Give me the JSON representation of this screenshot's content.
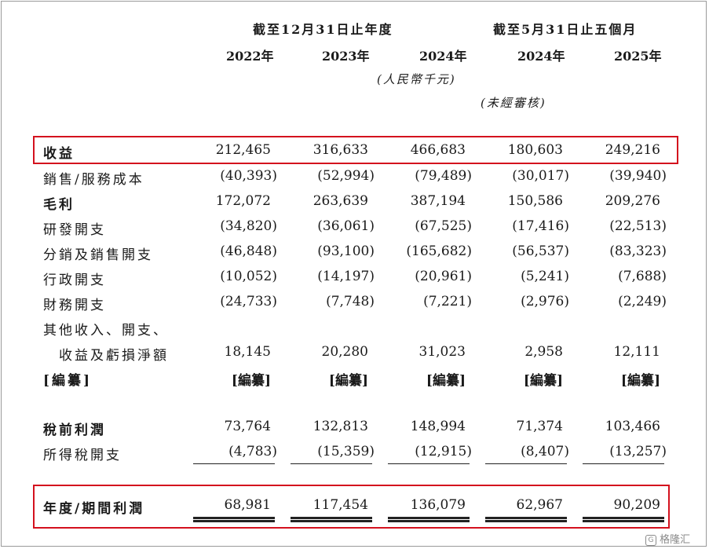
{
  "header": {
    "group_fy": "截至12月31日止年度",
    "group_5m": "截至5月31日止五個月",
    "years": [
      "2022年",
      "2023年",
      "2024年",
      "2024年",
      "2025年"
    ],
    "currency_note": "(人民幣千元)",
    "unaudited_note": "(未經審核)"
  },
  "rows": [
    {
      "label": "收益",
      "values": [
        "212,465",
        "316,633",
        "466,683",
        "180,603",
        "249,216"
      ]
    },
    {
      "label": "銷售/服務成本",
      "values": [
        "(40,393)",
        "(52,994)",
        "(79,489)",
        "(30,017)",
        "(39,940)"
      ]
    },
    {
      "label": "毛利",
      "values": [
        "172,072",
        "263,639",
        "387,194",
        "150,586",
        "209,276"
      ]
    },
    {
      "label": "研發開支",
      "values": [
        "(34,820)",
        "(36,061)",
        "(67,525)",
        "(17,416)",
        "(22,513)"
      ]
    },
    {
      "label": "分銷及銷售開支",
      "values": [
        "(46,848)",
        "(93,100)",
        "(165,682)",
        "(56,537)",
        "(83,323)"
      ]
    },
    {
      "label": "行政開支",
      "values": [
        "(10,052)",
        "(14,197)",
        "(20,961)",
        "(5,241)",
        "(7,688)"
      ]
    },
    {
      "label": "財務開支",
      "values": [
        "(24,733)",
        "(7,748)",
        "(7,221)",
        "(2,976)",
        "(2,249)"
      ]
    },
    {
      "label": "其他收入、開支、",
      "label2": "收益及虧損淨額",
      "values": [
        "18,145",
        "20,280",
        "31,023",
        "2,958",
        "12,111"
      ]
    },
    {
      "label": "[編纂]",
      "values": [
        "[編纂]",
        "[編纂]",
        "[編纂]",
        "[編纂]",
        "[編纂]"
      ]
    },
    {
      "label": "稅前利潤",
      "values": [
        "73,764",
        "132,813",
        "148,994",
        "71,374",
        "103,466"
      ]
    },
    {
      "label": "所得稅開支",
      "values": [
        "(4,783)",
        "(15,359)",
        "(12,915)",
        "(8,407)",
        "(13,257)"
      ]
    },
    {
      "label": "年度/期間利潤",
      "values": [
        "68,981",
        "117,454",
        "136,079",
        "62,967",
        "90,209"
      ]
    }
  ],
  "watermark": "格隆汇",
  "colors": {
    "highlight": "#d4111e",
    "text": "#1a1a1a"
  }
}
